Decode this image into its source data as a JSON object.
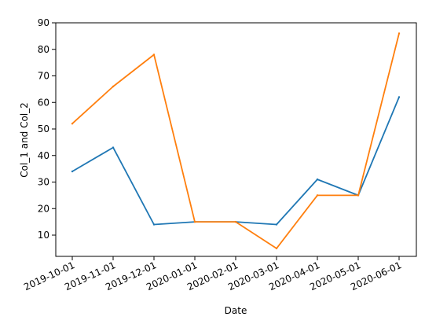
{
  "chart_data": {
    "type": "line",
    "title": "",
    "xlabel": "Date",
    "ylabel": "Col_1 and Col_2",
    "categories": [
      "2019-10-01",
      "2019-11-01",
      "2019-12-01",
      "2020-01-01",
      "2020-02-01",
      "2020-03-01",
      "2020-04-01",
      "2020-05-01",
      "2020-06-01"
    ],
    "series": [
      {
        "color": "#1f77b4",
        "values": [
          34,
          43,
          14,
          15,
          15,
          14,
          31,
          25,
          62
        ]
      },
      {
        "color": "#ff7f0e",
        "values": [
          52,
          66,
          78,
          15,
          15,
          5,
          25,
          25,
          86
        ]
      }
    ],
    "ylim": [
      2,
      90
    ],
    "yticks": [
      10,
      20,
      30,
      40,
      50,
      60,
      70,
      80,
      90
    ],
    "grid": false,
    "legend": "none"
  }
}
